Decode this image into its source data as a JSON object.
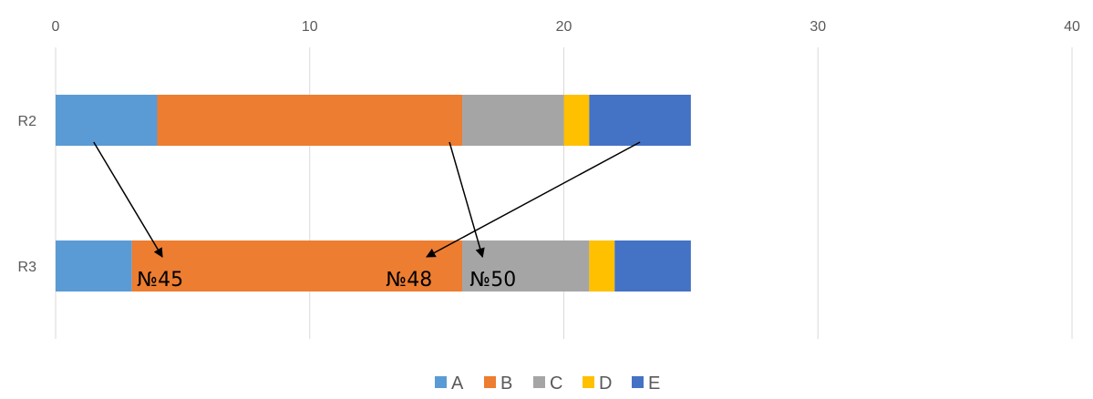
{
  "chart_data": {
    "type": "bar",
    "orientation": "horizontal",
    "stacked": true,
    "categories": [
      "R2",
      "R3"
    ],
    "series": [
      {
        "name": "A",
        "color": "#5B9BD5",
        "values": [
          4,
          3
        ]
      },
      {
        "name": "B",
        "color": "#ED7D31",
        "values": [
          12,
          13
        ]
      },
      {
        "name": "C",
        "color": "#A5A5A5",
        "values": [
          4,
          5
        ]
      },
      {
        "name": "D",
        "color": "#FFC000",
        "values": [
          1,
          1
        ]
      },
      {
        "name": "E",
        "color": "#4472C4",
        "values": [
          4,
          3
        ]
      }
    ],
    "xlim": [
      0,
      40
    ],
    "xticks": [
      "0",
      "10",
      "20",
      "30",
      "40"
    ],
    "gridlines": true,
    "legend_position": "bottom",
    "annotations": [
      {
        "text": "№45",
        "category": "R3",
        "x": 3.2
      },
      {
        "text": "№48",
        "category": "R3",
        "x": 13.0
      },
      {
        "text": "№50",
        "category": "R3",
        "x": 16.3
      }
    ],
    "arrows": [
      {
        "from": {
          "category": "R2",
          "x": 1.5
        },
        "to": {
          "category": "R3",
          "x": 4.2
        }
      },
      {
        "from": {
          "category": "R2",
          "x": 15.5
        },
        "to": {
          "category": "R3",
          "x": 16.8
        }
      },
      {
        "from": {
          "category": "R2",
          "x": 23.0
        },
        "to": {
          "category": "R3",
          "x": 14.6
        }
      }
    ]
  }
}
